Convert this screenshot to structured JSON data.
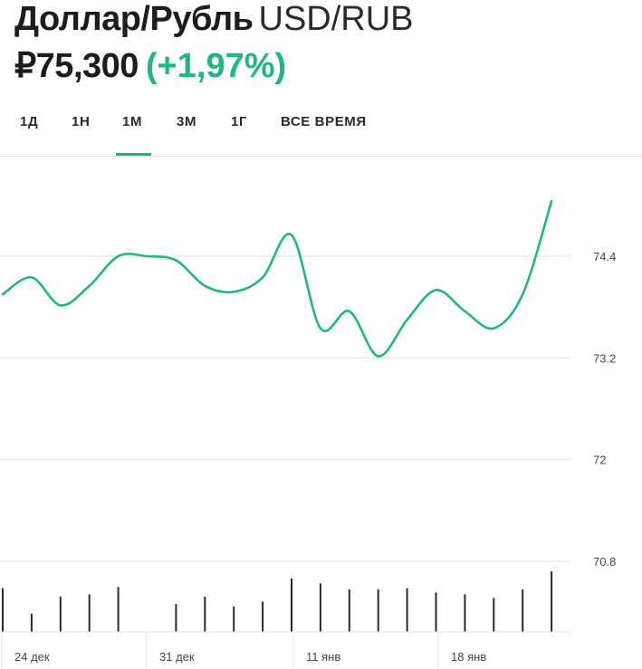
{
  "header": {
    "pair_name": "Доллар/Рубль",
    "ticker": "USD/RUB",
    "price": "₽75,300",
    "change": "(+1,97%)"
  },
  "tabs": [
    {
      "label": "1Д"
    },
    {
      "label": "1Н"
    },
    {
      "label": "1М",
      "active": true
    },
    {
      "label": "3М"
    },
    {
      "label": "1Г"
    },
    {
      "label": "ВСЕ ВРЕМЯ"
    }
  ],
  "colors": {
    "line": "#21b685",
    "grid": "#e3e3e3",
    "volume": "#2a2a2a",
    "text": "#1f1f1f"
  },
  "chart_data": {
    "type": "line",
    "title": "",
    "xlabel": "",
    "ylabel": "",
    "ylim": [
      69.7,
      75.5
    ],
    "y_ticks": [
      74.4,
      73.2,
      72,
      70.8
    ],
    "y_tick_labels": [
      "74.4",
      "73.2",
      "72",
      "70.8"
    ],
    "x_tick_labels": [
      "24 дек",
      "31 дек",
      "11 янв",
      "18 янв"
    ],
    "grid": true,
    "series": [
      {
        "points": [
          [
            0,
            73.95
          ],
          [
            1,
            74.15
          ],
          [
            2,
            73.82
          ],
          [
            3,
            74.05
          ],
          [
            4,
            74.4
          ],
          [
            5,
            74.4
          ],
          [
            6,
            74.35
          ],
          [
            7,
            74.05
          ],
          [
            8,
            73.98
          ],
          [
            9,
            74.15
          ],
          [
            10,
            74.65
          ],
          [
            11,
            73.55
          ],
          [
            12,
            73.75
          ],
          [
            13,
            73.22
          ],
          [
            14,
            73.65
          ],
          [
            15,
            74.0
          ],
          [
            16,
            73.75
          ],
          [
            17,
            73.55
          ],
          [
            18,
            73.95
          ],
          [
            19,
            75.05
          ]
        ]
      }
    ],
    "volume": [
      0.72,
      0.3,
      0.58,
      0.62,
      0.74,
      null,
      0.46,
      0.58,
      0.42,
      0.5,
      0.88,
      0.8,
      0.7,
      0.7,
      0.72,
      0.65,
      0.62,
      0.56,
      0.7,
      1.0
    ]
  }
}
